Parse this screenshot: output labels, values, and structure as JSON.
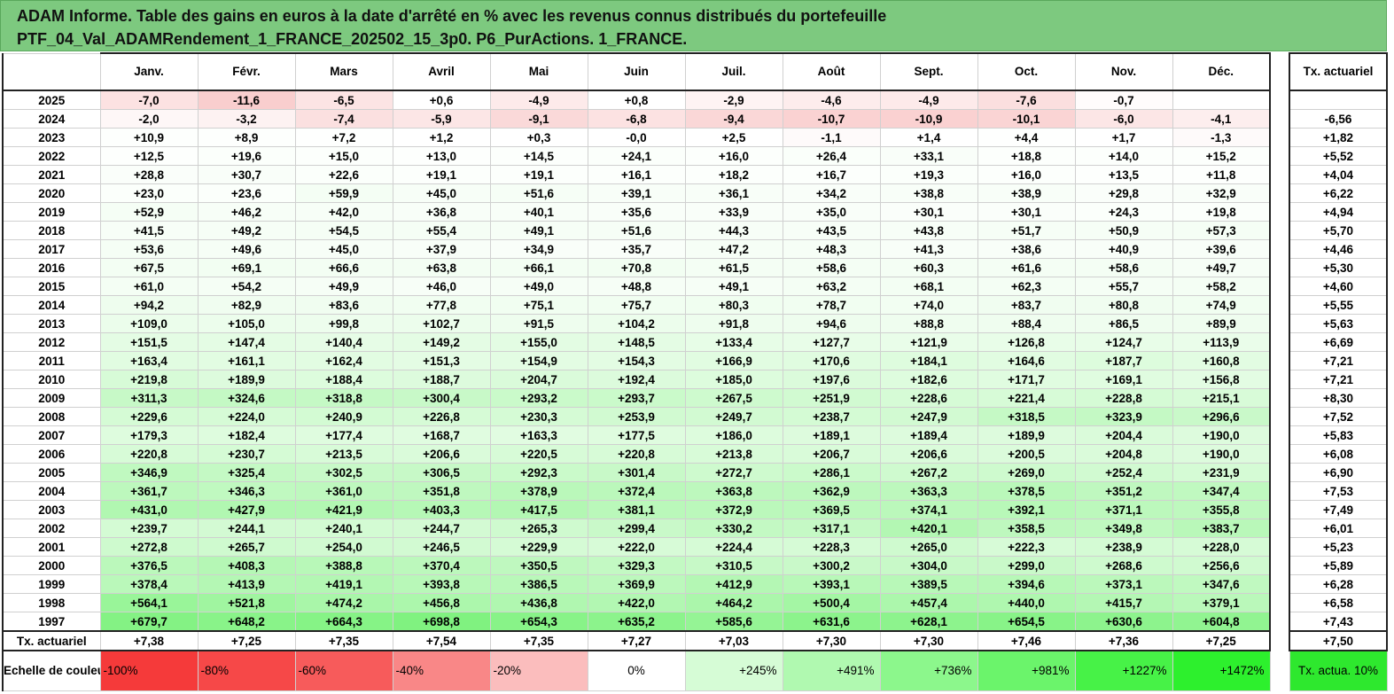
{
  "title": {
    "line1": "ADAM Informe. Table des gains en euros à la date d'arrêté en % avec les revenus connus distribués du portefeuille",
    "line2": "PTF_04_Val_ADAMRendement_1_FRANCE_202502_15_3p0. P6_PurActions. 1_FRANCE."
  },
  "months": [
    "Janv.",
    "Févr.",
    "Mars",
    "Avril",
    "Mai",
    "Juin",
    "Juil.",
    "Août",
    "Sept.",
    "Oct.",
    "Nov.",
    "Déc."
  ],
  "tx_header": "Tx. actuariel",
  "rows": [
    {
      "year": "2025",
      "values": [
        "-7,0",
        "-11,6",
        "-6,5",
        "+0,6",
        "-4,9",
        "+0,8",
        "-2,9",
        "-4,6",
        "-4,9",
        "-7,6",
        "-0,7",
        ""
      ],
      "tx": ""
    },
    {
      "year": "2024",
      "values": [
        "-2,0",
        "-3,2",
        "-7,4",
        "-5,9",
        "-9,1",
        "-6,8",
        "-9,4",
        "-10,7",
        "-10,9",
        "-10,1",
        "-6,0",
        "-4,1"
      ],
      "tx": "-6,56"
    },
    {
      "year": "2023",
      "values": [
        "+10,9",
        "+8,9",
        "+7,2",
        "+1,2",
        "+0,3",
        "-0,0",
        "+2,5",
        "-1,1",
        "+1,4",
        "+4,4",
        "+1,7",
        "-1,3"
      ],
      "tx": "+1,82"
    },
    {
      "year": "2022",
      "values": [
        "+12,5",
        "+19,6",
        "+15,0",
        "+13,0",
        "+14,5",
        "+24,1",
        "+16,0",
        "+26,4",
        "+33,1",
        "+18,8",
        "+14,0",
        "+15,2"
      ],
      "tx": "+5,52"
    },
    {
      "year": "2021",
      "values": [
        "+28,8",
        "+30,7",
        "+22,6",
        "+19,1",
        "+19,1",
        "+16,1",
        "+18,2",
        "+16,7",
        "+19,3",
        "+16,0",
        "+13,5",
        "+11,8"
      ],
      "tx": "+4,04"
    },
    {
      "year": "2020",
      "values": [
        "+23,0",
        "+23,6",
        "+59,9",
        "+45,0",
        "+51,6",
        "+39,1",
        "+36,1",
        "+34,2",
        "+38,8",
        "+38,9",
        "+29,8",
        "+32,9"
      ],
      "tx": "+6,22"
    },
    {
      "year": "2019",
      "values": [
        "+52,9",
        "+46,2",
        "+42,0",
        "+36,8",
        "+40,1",
        "+35,6",
        "+33,9",
        "+35,0",
        "+30,1",
        "+30,1",
        "+24,3",
        "+19,8"
      ],
      "tx": "+4,94"
    },
    {
      "year": "2018",
      "values": [
        "+41,5",
        "+49,2",
        "+54,5",
        "+55,4",
        "+49,1",
        "+51,6",
        "+44,3",
        "+43,5",
        "+43,8",
        "+51,7",
        "+50,9",
        "+57,3"
      ],
      "tx": "+5,70"
    },
    {
      "year": "2017",
      "values": [
        "+53,6",
        "+49,6",
        "+45,0",
        "+37,9",
        "+34,9",
        "+35,7",
        "+47,2",
        "+48,3",
        "+41,3",
        "+38,6",
        "+40,9",
        "+39,6"
      ],
      "tx": "+4,46"
    },
    {
      "year": "2016",
      "values": [
        "+67,5",
        "+69,1",
        "+66,6",
        "+63,8",
        "+66,1",
        "+70,8",
        "+61,5",
        "+58,6",
        "+60,3",
        "+61,6",
        "+58,6",
        "+49,7"
      ],
      "tx": "+5,30"
    },
    {
      "year": "2015",
      "values": [
        "+61,0",
        "+54,2",
        "+49,9",
        "+46,0",
        "+49,0",
        "+48,8",
        "+49,1",
        "+63,2",
        "+68,1",
        "+62,3",
        "+55,7",
        "+58,2"
      ],
      "tx": "+4,60"
    },
    {
      "year": "2014",
      "values": [
        "+94,2",
        "+82,9",
        "+83,6",
        "+77,8",
        "+75,1",
        "+75,7",
        "+80,3",
        "+78,7",
        "+74,0",
        "+83,7",
        "+80,8",
        "+74,9"
      ],
      "tx": "+5,55"
    },
    {
      "year": "2013",
      "values": [
        "+109,0",
        "+105,0",
        "+99,8",
        "+102,7",
        "+91,5",
        "+104,2",
        "+91,8",
        "+94,6",
        "+88,8",
        "+88,4",
        "+86,5",
        "+89,9"
      ],
      "tx": "+5,63"
    },
    {
      "year": "2012",
      "values": [
        "+151,5",
        "+147,4",
        "+140,4",
        "+149,2",
        "+155,0",
        "+148,5",
        "+133,4",
        "+127,7",
        "+121,9",
        "+126,8",
        "+124,7",
        "+113,9"
      ],
      "tx": "+6,69"
    },
    {
      "year": "2011",
      "values": [
        "+163,4",
        "+161,1",
        "+162,4",
        "+151,3",
        "+154,9",
        "+154,3",
        "+166,9",
        "+170,6",
        "+184,1",
        "+164,6",
        "+187,7",
        "+160,8"
      ],
      "tx": "+7,21"
    },
    {
      "year": "2010",
      "values": [
        "+219,8",
        "+189,9",
        "+188,4",
        "+188,7",
        "+204,7",
        "+192,4",
        "+185,0",
        "+197,6",
        "+182,6",
        "+171,7",
        "+169,1",
        "+156,8"
      ],
      "tx": "+7,21"
    },
    {
      "year": "2009",
      "values": [
        "+311,3",
        "+324,6",
        "+318,8",
        "+300,4",
        "+293,2",
        "+293,7",
        "+267,5",
        "+251,9",
        "+228,6",
        "+221,4",
        "+228,8",
        "+215,1"
      ],
      "tx": "+8,30"
    },
    {
      "year": "2008",
      "values": [
        "+229,6",
        "+224,0",
        "+240,9",
        "+226,8",
        "+230,3",
        "+253,9",
        "+249,7",
        "+238,7",
        "+247,9",
        "+318,5",
        "+323,9",
        "+296,6"
      ],
      "tx": "+7,52"
    },
    {
      "year": "2007",
      "values": [
        "+179,3",
        "+182,4",
        "+177,4",
        "+168,7",
        "+163,3",
        "+177,5",
        "+186,0",
        "+189,1",
        "+189,4",
        "+189,9",
        "+204,4",
        "+190,0"
      ],
      "tx": "+5,83"
    },
    {
      "year": "2006",
      "values": [
        "+220,8",
        "+230,7",
        "+213,5",
        "+206,6",
        "+220,5",
        "+220,8",
        "+213,8",
        "+206,7",
        "+206,6",
        "+200,5",
        "+204,8",
        "+190,0"
      ],
      "tx": "+6,08"
    },
    {
      "year": "2005",
      "values": [
        "+346,9",
        "+325,4",
        "+302,5",
        "+306,5",
        "+292,3",
        "+301,4",
        "+272,7",
        "+286,1",
        "+267,2",
        "+269,0",
        "+252,4",
        "+231,9"
      ],
      "tx": "+6,90"
    },
    {
      "year": "2004",
      "values": [
        "+361,7",
        "+346,3",
        "+361,0",
        "+351,8",
        "+378,9",
        "+372,4",
        "+363,8",
        "+362,9",
        "+363,3",
        "+378,5",
        "+351,2",
        "+347,4"
      ],
      "tx": "+7,53"
    },
    {
      "year": "2003",
      "values": [
        "+431,0",
        "+427,9",
        "+421,9",
        "+403,3",
        "+417,5",
        "+381,1",
        "+372,9",
        "+369,5",
        "+374,1",
        "+392,1",
        "+371,1",
        "+355,8"
      ],
      "tx": "+7,49"
    },
    {
      "year": "2002",
      "values": [
        "+239,7",
        "+244,1",
        "+240,1",
        "+244,7",
        "+265,3",
        "+299,4",
        "+330,2",
        "+317,1",
        "+420,1",
        "+358,5",
        "+349,8",
        "+383,7"
      ],
      "tx": "+6,01"
    },
    {
      "year": "2001",
      "values": [
        "+272,8",
        "+265,7",
        "+254,0",
        "+246,5",
        "+229,9",
        "+222,0",
        "+224,4",
        "+228,3",
        "+265,0",
        "+222,3",
        "+238,9",
        "+228,0"
      ],
      "tx": "+5,23"
    },
    {
      "year": "2000",
      "values": [
        "+376,5",
        "+408,3",
        "+388,8",
        "+370,4",
        "+350,5",
        "+329,3",
        "+310,5",
        "+300,2",
        "+304,0",
        "+299,0",
        "+268,6",
        "+256,6"
      ],
      "tx": "+5,89"
    },
    {
      "year": "1999",
      "values": [
        "+378,4",
        "+413,9",
        "+419,1",
        "+393,8",
        "+386,5",
        "+369,9",
        "+412,9",
        "+393,1",
        "+389,5",
        "+394,6",
        "+373,1",
        "+347,6"
      ],
      "tx": "+6,28"
    },
    {
      "year": "1998",
      "values": [
        "+564,1",
        "+521,8",
        "+474,2",
        "+456,8",
        "+436,8",
        "+422,0",
        "+464,2",
        "+500,4",
        "+457,4",
        "+440,0",
        "+415,7",
        "+379,1"
      ],
      "tx": "+6,58"
    },
    {
      "year": "1997",
      "values": [
        "+679,7",
        "+648,2",
        "+664,3",
        "+698,8",
        "+654,3",
        "+635,2",
        "+585,6",
        "+631,6",
        "+628,1",
        "+654,5",
        "+630,6",
        "+604,8"
      ],
      "tx": "+7,43"
    }
  ],
  "tx_row": {
    "label": "Tx. actuariel",
    "values": [
      "+7,38",
      "+7,25",
      "+7,35",
      "+7,54",
      "+7,35",
      "+7,27",
      "+7,03",
      "+7,30",
      "+7,30",
      "+7,46",
      "+7,36",
      "+7,25"
    ],
    "tx": "+7,50"
  },
  "scale": {
    "label": "Echelle de couleur",
    "entries": [
      "-100%",
      "-80%",
      "-60%",
      "-40%",
      "-20%",
      "0%",
      "+245%",
      "+491%",
      "+736%",
      "+981%",
      "+1227%",
      "+1472%"
    ],
    "colors": [
      "#f53a3a",
      "#f64848",
      "#f75b5b",
      "#f98787",
      "#fbbdbd",
      "#ffffff",
      "#d6fcd6",
      "#b0f9b0",
      "#8cf78c",
      "#6bf46b",
      "#47f247",
      "#2df02d"
    ],
    "tx_label": "Tx. actua. 10%",
    "tx_color": "#2ee82e"
  }
}
